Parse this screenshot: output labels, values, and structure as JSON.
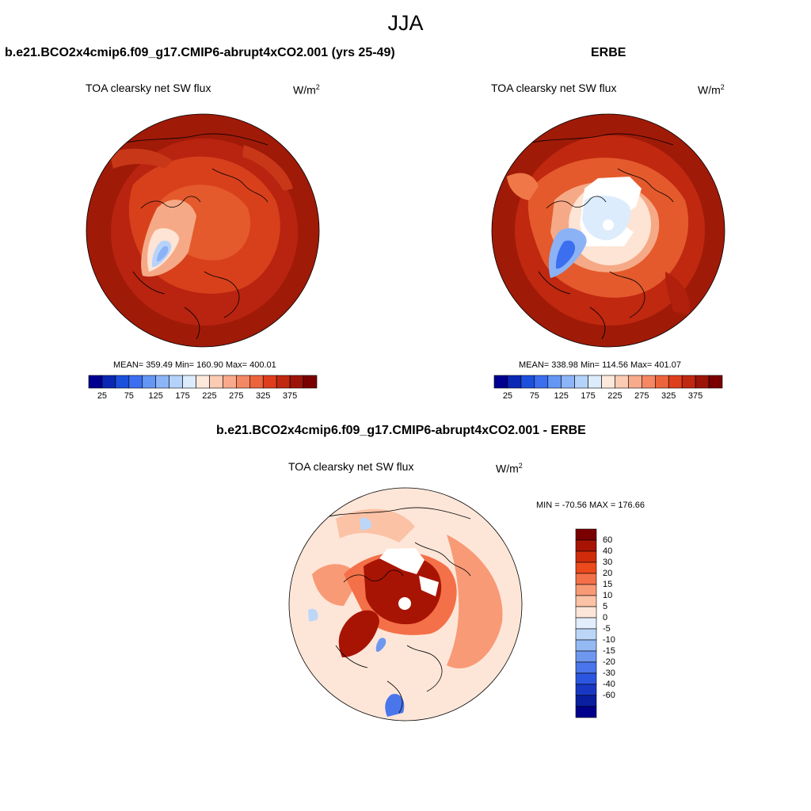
{
  "title": "JJA",
  "panels": [
    {
      "case_title": "b.e21.BCO2x4cmip6.f09_g17.CMIP6-abrupt4xCO2.001 (yrs 25-49)",
      "variable": "TOA clearsky net SW flux",
      "units_base": "W/m",
      "units_exp": "2",
      "stats": "MEAN= 359.49  Min= 160.90  Max= 400.01"
    },
    {
      "case_title": "ERBE",
      "variable": "TOA clearsky net SW flux",
      "units_base": "W/m",
      "units_exp": "2",
      "stats": "MEAN= 338.98  Min= 114.56  Max= 401.07"
    },
    {
      "case_title": "b.e21.BCO2x4cmip6.f09_g17.CMIP6-abrupt4xCO2.001 - ERBE",
      "variable": "TOA clearsky net SW flux",
      "units_base": "W/m",
      "units_exp": "2",
      "stats": "MIN = -70.56 MAX = 176.66"
    }
  ],
  "colorbar_abs": {
    "colors": [
      "#000090",
      "#0a28b4",
      "#1c50dc",
      "#3c6ef0",
      "#6496f4",
      "#8cb4f8",
      "#b4d2fa",
      "#dcecfc",
      "#fde8dc",
      "#fccbb4",
      "#f8aa8c",
      "#f48864",
      "#ec643c",
      "#de3e1c",
      "#c02810",
      "#9c1408",
      "#7a0000"
    ],
    "labels": [
      "25",
      "75",
      "125",
      "175",
      "225",
      "275",
      "325",
      "375"
    ]
  },
  "colorbar_diff": {
    "colors_top_to_bottom": [
      "#7a0000",
      "#a81404",
      "#d02c0c",
      "#ec4a1c",
      "#f47048",
      "#f89a76",
      "#fbc2a6",
      "#fde6d8",
      "#e2eefc",
      "#bcd6f8",
      "#94baf4",
      "#6e98f0",
      "#4a76ec",
      "#2c56e0",
      "#1838c4",
      "#0a1ea0",
      "#00008c"
    ],
    "labels": [
      "60",
      "40",
      "30",
      "20",
      "15",
      "10",
      "5",
      "0",
      "-5",
      "-10",
      "-15",
      "-20",
      "-30",
      "-40",
      "-60"
    ]
  }
}
